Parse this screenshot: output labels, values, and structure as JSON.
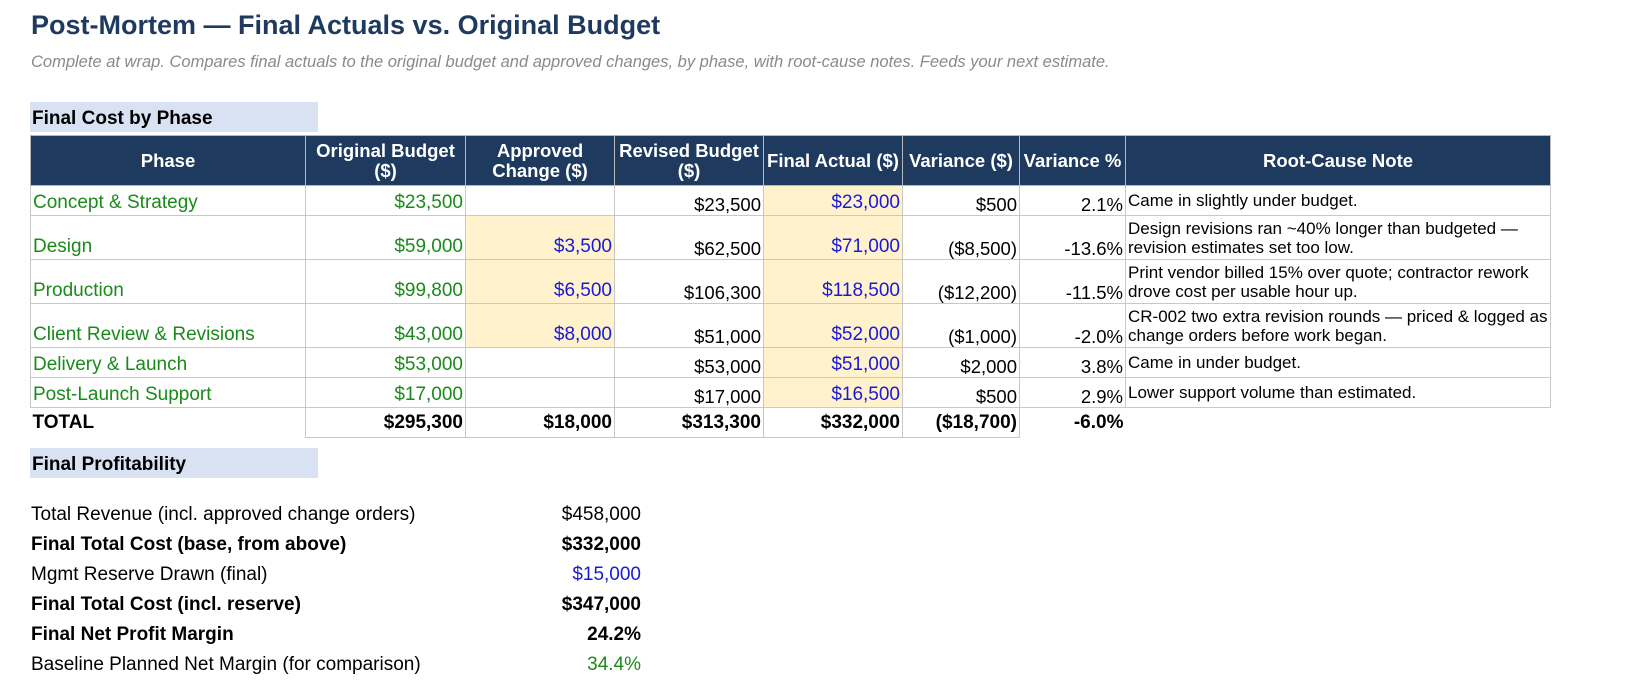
{
  "header": {
    "title": "Post-Mortem — Final Actuals vs. Original Budget",
    "subtitle": "Complete at wrap. Compares final actuals to the original budget and approved changes, by phase, with root-cause notes. Feeds your next estimate."
  },
  "phase_section": {
    "label": "Final Cost by Phase",
    "columns": [
      "Phase",
      "Original Budget ($)",
      "Approved Change ($)",
      "Revised Budget ($)",
      "Final Actual ($)",
      "Variance ($)",
      "Variance %",
      "Root-Cause Note"
    ],
    "rows": [
      {
        "phase": "Concept & Strategy",
        "original": "$23,500",
        "change": "",
        "revised": "$23,500",
        "actual": "$23,000",
        "variance": "$500",
        "variance_pct": "2.1%",
        "note": "Came in slightly under budget."
      },
      {
        "phase": "Design",
        "original": "$59,000",
        "change": "$3,500",
        "revised": "$62,500",
        "actual": "$71,000",
        "variance": "($8,500)",
        "variance_pct": "-13.6%",
        "note": "Design revisions ran ~40% longer than budgeted — revision estimates set too low."
      },
      {
        "phase": "Production",
        "original": "$99,800",
        "change": "$6,500",
        "revised": "$106,300",
        "actual": "$118,500",
        "variance": "($12,200)",
        "variance_pct": "-11.5%",
        "note": "Print vendor billed 15% over quote; contractor rework drove cost per usable hour up."
      },
      {
        "phase": "Client Review & Revisions",
        "original": "$43,000",
        "change": "$8,000",
        "revised": "$51,000",
        "actual": "$52,000",
        "variance": "($1,000)",
        "variance_pct": "-2.0%",
        "note": "CR-002 two extra revision rounds — priced & logged as change orders before work began."
      },
      {
        "phase": "Delivery & Launch",
        "original": "$53,000",
        "change": "",
        "revised": "$53,000",
        "actual": "$51,000",
        "variance": "$2,000",
        "variance_pct": "3.8%",
        "note": "Came in under budget."
      },
      {
        "phase": "Post-Launch Support",
        "original": "$17,000",
        "change": "",
        "revised": "$17,000",
        "actual": "$16,500",
        "variance": "$500",
        "variance_pct": "2.9%",
        "note": "Lower support volume than estimated."
      }
    ],
    "total": {
      "label": "TOTAL",
      "original": "$295,300",
      "change": "$18,000",
      "revised": "$313,300",
      "actual": "$332,000",
      "variance": "($18,700)",
      "variance_pct": "-6.0%"
    }
  },
  "profitability": {
    "label": "Final Profitability",
    "rows": [
      {
        "label": "Total Revenue (incl. approved change orders)",
        "value": "$458,000"
      },
      {
        "label": "Final Total Cost (base, from above)",
        "value": "$332,000"
      },
      {
        "label": "Mgmt Reserve Drawn (final)",
        "value": "$15,000"
      },
      {
        "label": "Final Total Cost (incl. reserve)",
        "value": "$347,000"
      },
      {
        "label": "Final Net Profit Margin",
        "value": "24.2%"
      },
      {
        "label": "Baseline Planned Net Margin (for comparison)",
        "value": "34.4%"
      }
    ]
  },
  "colors": {
    "header_fill": "#1f3a5f",
    "section_fill": "#d9e2f3",
    "input_fill": "#fff2cc",
    "input_text": "#1a1ad6",
    "linked_text": "#1a8a1a"
  }
}
